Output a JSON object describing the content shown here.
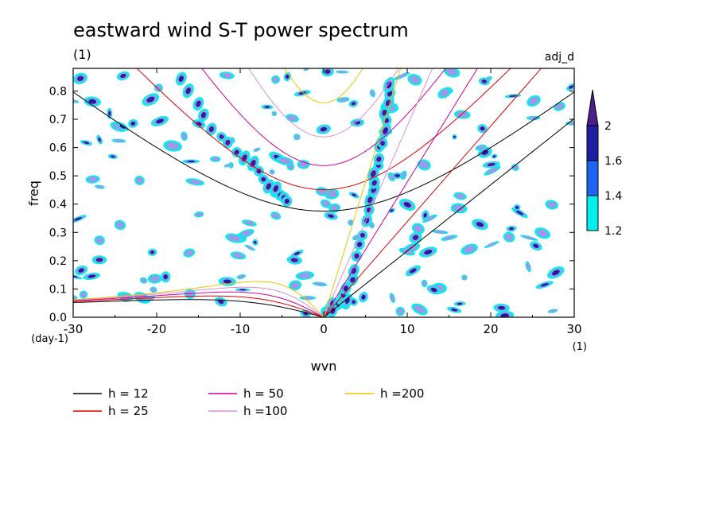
{
  "chart_data": {
    "type": "heatmap",
    "title": "eastward wind S-T power spectrum",
    "subtitle": "(1)",
    "top_right_label": "adj_d",
    "xlabel": "wvn",
    "ylabel": "freq",
    "x_unit": "(1)",
    "y_unit": "(day-1)",
    "xlim": [
      -30,
      30
    ],
    "ylim": [
      0,
      0.88
    ],
    "x_ticks": [
      -30,
      -20,
      -10,
      0,
      10,
      20,
      30
    ],
    "x_tick_labels": [
      "-30",
      "-20",
      "-10",
      "0",
      "10",
      "20",
      "30"
    ],
    "y_ticks": [
      0,
      0.1,
      0.2,
      0.3,
      0.4,
      0.5,
      0.6,
      0.7,
      0.8
    ],
    "y_tick_labels": [
      "0.0",
      "0.1",
      "0.2",
      "0.3",
      "0.4",
      "0.5",
      "0.6",
      "0.7",
      "0.8"
    ],
    "colorbar": {
      "levels": [
        1.2,
        1.4,
        1.6,
        2
      ],
      "labels": [
        "1.2",
        "1.4",
        "1.6",
        "2"
      ],
      "colors": [
        "#00f0f0",
        "#1e64f0",
        "#1e1ea0",
        "#4b1e8c"
      ]
    },
    "shading_color_fine": "#9a9ae6",
    "dispersion_curves": [
      {
        "name": "h = 12",
        "h": 12,
        "color": "#000000"
      },
      {
        "name": "h = 25",
        "h": 25,
        "color": "#e00000"
      },
      {
        "name": "h = 50",
        "h": 50,
        "color": "#d000a0"
      },
      {
        "name": "h =100",
        "h": 100,
        "color": "#d890d8"
      },
      {
        "name": "h =200",
        "h": 200,
        "color": "#e8c800"
      }
    ],
    "legend_position": "bottom"
  }
}
